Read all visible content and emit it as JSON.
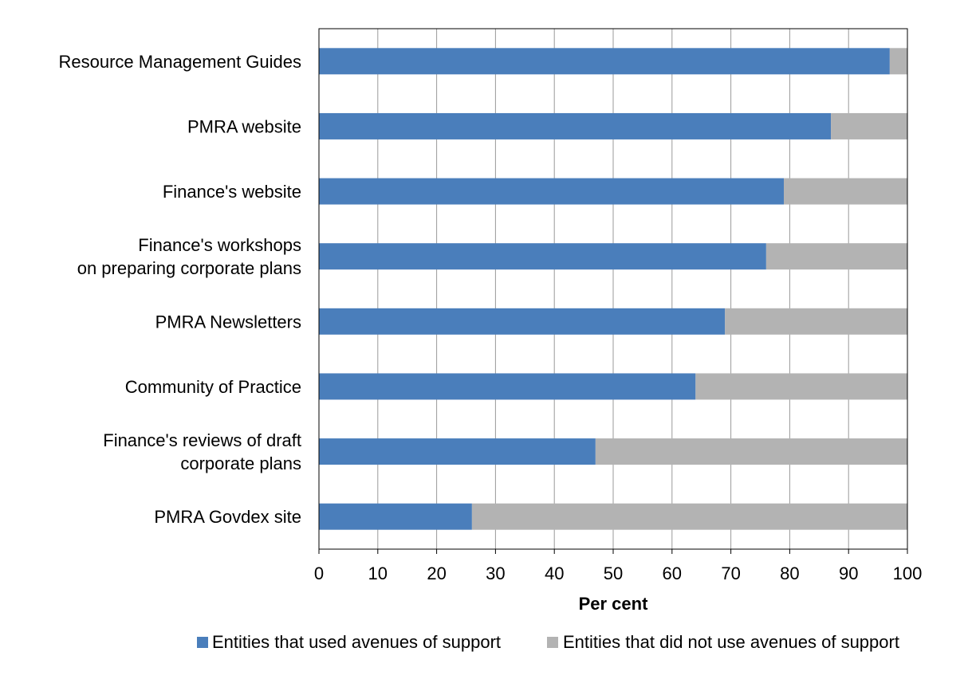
{
  "chart_data": {
    "type": "bar",
    "orientation": "horizontal",
    "stacked": true,
    "categories": [
      "Resource Management Guides",
      "PMRA website",
      "Finance's website",
      "Finance's workshops\non preparing corporate plans",
      "PMRA Newsletters",
      "Community of Practice",
      "Finance's reviews of draft\ncorporate plans",
      "PMRA Govdex site"
    ],
    "series": [
      {
        "name": "Entities that used avenues of support",
        "color": "#4a7ebb",
        "values": [
          97,
          87,
          79,
          76,
          69,
          64,
          47,
          26
        ]
      },
      {
        "name": "Entities that did not use avenues of support",
        "color": "#b3b3b3",
        "values": [
          3,
          13,
          21,
          24,
          31,
          36,
          53,
          74
        ]
      }
    ],
    "xlabel": "Per cent",
    "ylabel": "",
    "xlim": [
      0,
      100
    ],
    "xticks": [
      "0",
      "10",
      "20",
      "30",
      "40",
      "50",
      "60",
      "70",
      "80",
      "90",
      "100"
    ],
    "grid": true,
    "legend_position": "bottom"
  }
}
